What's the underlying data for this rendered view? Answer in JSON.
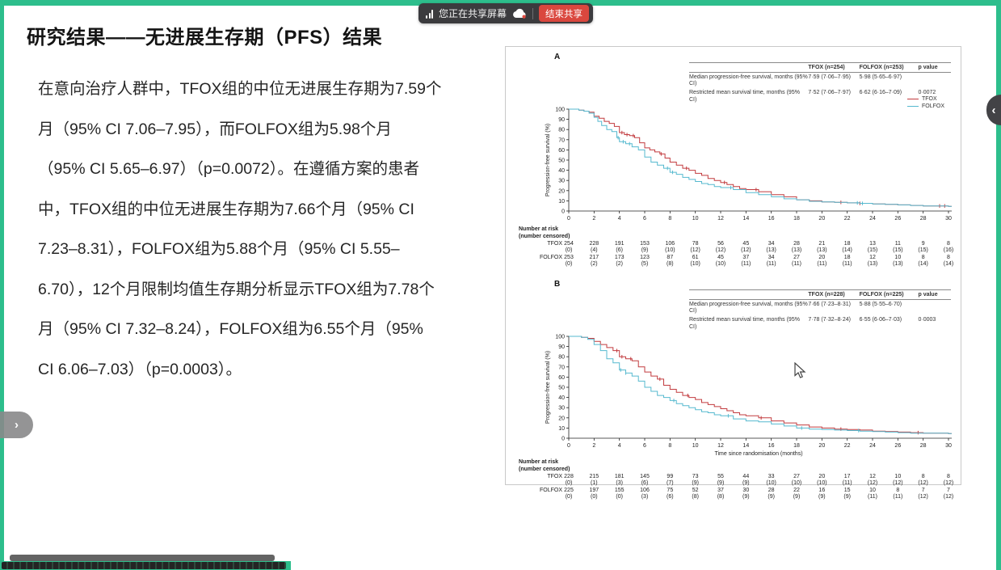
{
  "share_bar": {
    "status_text": "您正在共享屏幕",
    "end_button": "结束共享"
  },
  "nav": {
    "left_chevron": "›",
    "right_chevron": "‹"
  },
  "colors": {
    "accent_green": "#2dbe8c",
    "end_share_red": "#da473e",
    "tfox_red": "#c23b3f",
    "folfox_blue": "#56b9cf"
  },
  "slide": {
    "title": "研究结果——无进展生存期（PFS）结果",
    "body_lines": [
      "在意向治疗人群中，TFOX组的中位无进展生存期为7.59个",
      "月（95% CI 7.06–7.95），而FOLFOX组为5.98个月",
      "（95% CI 5.65–6.97）（p=0.0072）。在遵循方案的患者",
      "中，TFOX组的中位无进展生存期为7.66个月（95% CI",
      "7.23–8.31），FOLFOX组为5.88个月（95% CI 5.55–",
      "6.70），12个月限制均值生存期分析显示TFOX组为7.78个",
      "月（95% CI 7.32–8.24），FOLFOX组为6.55个月（95%",
      "CI 6.06–7.03）（p=0.0003）。"
    ]
  },
  "chart_data": [
    {
      "type": "line",
      "km": true,
      "label": "A",
      "ylabel": "Progression-free survival (%)",
      "xlabel": null,
      "xlim": [
        0,
        30
      ],
      "ylim": [
        0,
        100
      ],
      "xticks": [
        0,
        2,
        4,
        6,
        8,
        10,
        12,
        14,
        16,
        18,
        20,
        22,
        24,
        26,
        28,
        30
      ],
      "yticks": [
        0,
        10,
        20,
        30,
        40,
        50,
        60,
        70,
        80,
        90,
        100
      ],
      "stats_table": {
        "columns": [
          "",
          "TFOX (n=254)",
          "FOLFOX (n=253)",
          "p value"
        ],
        "rows": [
          [
            "Median progression-free survival, months (95% CI)",
            "7·59 (7·06–7·95)",
            "5·98 (5·65–6·97)",
            ""
          ],
          [
            "Restricted mean survival time, months (95% CI)",
            "7·52 (7·06–7·97)",
            "6·62 (6·16–7·09)",
            "0·0072"
          ]
        ]
      },
      "legend": [
        {
          "name": "TFOX",
          "color": "#c23b3f"
        },
        {
          "name": "FOLFOX",
          "color": "#56b9cf"
        }
      ],
      "series": [
        {
          "name": "TFOX",
          "color": "#c23b3f",
          "censor_ticks": [
            4.2,
            4.6,
            5.1,
            7.3,
            9.3,
            12.3,
            14.8,
            21.5,
            23.0,
            29.3,
            29.7
          ],
          "points": [
            [
              0,
              100
            ],
            [
              0.8,
              99
            ],
            [
              1.2,
              98
            ],
            [
              1.6,
              97
            ],
            [
              2,
              93
            ],
            [
              2.4,
              91
            ],
            [
              2.8,
              88
            ],
            [
              3.2,
              86
            ],
            [
              3.6,
              83
            ],
            [
              4,
              77
            ],
            [
              4.4,
              75
            ],
            [
              4.8,
              74
            ],
            [
              5.2,
              72
            ],
            [
              5.6,
              67
            ],
            [
              6,
              62
            ],
            [
              6.4,
              60
            ],
            [
              6.8,
              58
            ],
            [
              7.2,
              56
            ],
            [
              7.6,
              52
            ],
            [
              8,
              48
            ],
            [
              8.5,
              45
            ],
            [
              9,
              42
            ],
            [
              9.5,
              40
            ],
            [
              10,
              37
            ],
            [
              10.5,
              35
            ],
            [
              11,
              32
            ],
            [
              11.5,
              30
            ],
            [
              12,
              28
            ],
            [
              12.5,
              26
            ],
            [
              13,
              24
            ],
            [
              13.5,
              22
            ],
            [
              14,
              21
            ],
            [
              15,
              19
            ],
            [
              16,
              16
            ],
            [
              17,
              14
            ],
            [
              18,
              11
            ],
            [
              19,
              10
            ],
            [
              20,
              9
            ],
            [
              21,
              8.5
            ],
            [
              22,
              8
            ],
            [
              23,
              7.5
            ],
            [
              24,
              7
            ],
            [
              25,
              6.5
            ],
            [
              26,
              6
            ],
            [
              27,
              5.5
            ],
            [
              28,
              5
            ],
            [
              30,
              4.5
            ]
          ]
        },
        {
          "name": "FOLFOX",
          "color": "#56b9cf",
          "censor_ticks": [
            3.9,
            4.3,
            4.8,
            7.8,
            8.2,
            12.8,
            22.8,
            23.2
          ],
          "points": [
            [
              0,
              100
            ],
            [
              0.8,
              99
            ],
            [
              1.2,
              98
            ],
            [
              1.6,
              96
            ],
            [
              2,
              92
            ],
            [
              2.3,
              88
            ],
            [
              2.6,
              84
            ],
            [
              3,
              80
            ],
            [
              3.4,
              78
            ],
            [
              3.8,
              72
            ],
            [
              4,
              68
            ],
            [
              4.5,
              66
            ],
            [
              5,
              63
            ],
            [
              5.5,
              60
            ],
            [
              6,
              53
            ],
            [
              6.5,
              48
            ],
            [
              7,
              45
            ],
            [
              7.5,
              42
            ],
            [
              8,
              38
            ],
            [
              8.5,
              36
            ],
            [
              9,
              33
            ],
            [
              9.5,
              31
            ],
            [
              10,
              29
            ],
            [
              10.5,
              27
            ],
            [
              11,
              26
            ],
            [
              11.5,
              24
            ],
            [
              12,
              23
            ],
            [
              13,
              21
            ],
            [
              14,
              18
            ],
            [
              15,
              16
            ],
            [
              16,
              14
            ],
            [
              17,
              12
            ],
            [
              18,
              11
            ],
            [
              19,
              9.5
            ],
            [
              20,
              9
            ],
            [
              21,
              8.5
            ],
            [
              22,
              8
            ],
            [
              23,
              7.5
            ],
            [
              24,
              7
            ],
            [
              25,
              6.5
            ],
            [
              26,
              6
            ],
            [
              27,
              5.5
            ],
            [
              28,
              5
            ],
            [
              30,
              4.5
            ]
          ]
        }
      ],
      "number_at_risk": {
        "header": [
          "Number at risk",
          "(number censored)"
        ],
        "months": [
          0,
          2,
          4,
          6,
          8,
          10,
          12,
          14,
          16,
          18,
          20,
          22,
          24,
          26,
          28,
          30
        ],
        "rows": [
          {
            "name": "TFOX",
            "at_risk": [
              254,
              228,
              191,
              153,
              106,
              78,
              56,
              45,
              34,
              28,
              21,
              18,
              13,
              11,
              9,
              8
            ],
            "censored": [
              0,
              4,
              6,
              9,
              10,
              12,
              12,
              12,
              13,
              13,
              13,
              14,
              15,
              15,
              15,
              16
            ]
          },
          {
            "name": "FOLFOX",
            "at_risk": [
              253,
              217,
              173,
              123,
              87,
              61,
              45,
              37,
              34,
              27,
              20,
              18,
              12,
              10,
              8,
              8
            ],
            "censored": [
              0,
              2,
              2,
              5,
              8,
              10,
              10,
              11,
              11,
              11,
              11,
              11,
              13,
              13,
              14,
              14
            ]
          }
        ]
      }
    },
    {
      "type": "line",
      "km": true,
      "label": "B",
      "ylabel": "Progression-free survival (%)",
      "xlabel": "Time since randomisation (months)",
      "xlim": [
        0,
        30
      ],
      "ylim": [
        0,
        100
      ],
      "xticks": [
        0,
        2,
        4,
        6,
        8,
        10,
        12,
        14,
        16,
        18,
        20,
        22,
        24,
        26,
        28,
        30
      ],
      "yticks": [
        0,
        10,
        20,
        30,
        40,
        50,
        60,
        70,
        80,
        90,
        100
      ],
      "stats_table": {
        "columns": [
          "",
          "TFOX (n=228)",
          "FOLFOX (n=225)",
          "p value"
        ],
        "rows": [
          [
            "Median progression-free survival, months (95% CI)",
            "7·66 (7·23–8·31)",
            "5·88 (5·55–6·70)",
            ""
          ],
          [
            "Restricted mean survival time, months (95% CI)",
            "7·78 (7·32–8·24)",
            "6·55 (6·06–7·03)",
            "0·0003"
          ]
        ]
      },
      "legend": null,
      "series": [
        {
          "name": "TFOX",
          "color": "#c23b3f",
          "censor_ticks": [
            3.8,
            4.2,
            4.9,
            7.2,
            9.4,
            15.2,
            21.5,
            27.6
          ],
          "points": [
            [
              0,
              100
            ],
            [
              1,
              99
            ],
            [
              1.5,
              98
            ],
            [
              2,
              95
            ],
            [
              2.5,
              92
            ],
            [
              3,
              89
            ],
            [
              3.5,
              86
            ],
            [
              4,
              80
            ],
            [
              4.5,
              78
            ],
            [
              5,
              76
            ],
            [
              5.5,
              70
            ],
            [
              6,
              65
            ],
            [
              6.5,
              61
            ],
            [
              7,
              58
            ],
            [
              7.5,
              52
            ],
            [
              8,
              48
            ],
            [
              8.5,
              45
            ],
            [
              9,
              42
            ],
            [
              9.5,
              40
            ],
            [
              10,
              38
            ],
            [
              10.5,
              35
            ],
            [
              11,
              33
            ],
            [
              11.5,
              31
            ],
            [
              12,
              29
            ],
            [
              12.5,
              27
            ],
            [
              13,
              25
            ],
            [
              13.5,
              23
            ],
            [
              14,
              22
            ],
            [
              15,
              20
            ],
            [
              16,
              17
            ],
            [
              17,
              15
            ],
            [
              18,
              13
            ],
            [
              19,
              11
            ],
            [
              20,
              10
            ],
            [
              21,
              9
            ],
            [
              22,
              8.5
            ],
            [
              23,
              8
            ],
            [
              24,
              7
            ],
            [
              25,
              6.5
            ],
            [
              26,
              6
            ],
            [
              27,
              5.5
            ],
            [
              28,
              5
            ],
            [
              30,
              4.5
            ]
          ]
        },
        {
          "name": "FOLFOX",
          "color": "#56b9cf",
          "censor_ticks": [
            4.1,
            4.5,
            8.3,
            12.6,
            18.4,
            22.9
          ],
          "points": [
            [
              0,
              100
            ],
            [
              1,
              99
            ],
            [
              1.5,
              97
            ],
            [
              2,
              92
            ],
            [
              2.5,
              86
            ],
            [
              3,
              78
            ],
            [
              3.5,
              74
            ],
            [
              4,
              67
            ],
            [
              4.5,
              64
            ],
            [
              5,
              61
            ],
            [
              5.5,
              56
            ],
            [
              6,
              50
            ],
            [
              6.5,
              46
            ],
            [
              7,
              42
            ],
            [
              7.5,
              40
            ],
            [
              8,
              37
            ],
            [
              8.5,
              34
            ],
            [
              9,
              32
            ],
            [
              9.5,
              30
            ],
            [
              10,
              28
            ],
            [
              10.5,
              26
            ],
            [
              11,
              25
            ],
            [
              11.5,
              23
            ],
            [
              12,
              22
            ],
            [
              13,
              19
            ],
            [
              14,
              17
            ],
            [
              15,
              16
            ],
            [
              16,
              14
            ],
            [
              17,
              12
            ],
            [
              18,
              10
            ],
            [
              19,
              9
            ],
            [
              20,
              8.5
            ],
            [
              21,
              8
            ],
            [
              22,
              7.5
            ],
            [
              23,
              7
            ],
            [
              24,
              6.5
            ],
            [
              25,
              6
            ],
            [
              26,
              5.5
            ],
            [
              27,
              5
            ],
            [
              28,
              5
            ],
            [
              30,
              4.5
            ]
          ]
        }
      ],
      "number_at_risk": {
        "header": [
          "Number at risk",
          "(number censored)"
        ],
        "months": [
          0,
          2,
          4,
          6,
          8,
          10,
          12,
          14,
          16,
          18,
          20,
          22,
          24,
          26,
          28,
          30
        ],
        "rows": [
          {
            "name": "TFOX",
            "at_risk": [
              228,
              215,
              181,
              145,
              99,
              73,
              55,
              44,
              33,
              27,
              20,
              17,
              12,
              10,
              8,
              8
            ],
            "censored": [
              0,
              1,
              3,
              6,
              7,
              9,
              9,
              9,
              10,
              10,
              10,
              11,
              12,
              12,
              12,
              12
            ]
          },
          {
            "name": "FOLFOX",
            "at_risk": [
              225,
              197,
              155,
              106,
              75,
              52,
              37,
              30,
              28,
              22,
              16,
              15,
              10,
              8,
              7,
              7
            ],
            "censored": [
              0,
              0,
              0,
              3,
              6,
              8,
              8,
              9,
              9,
              9,
              9,
              9,
              11,
              11,
              12,
              12
            ]
          }
        ]
      }
    }
  ]
}
